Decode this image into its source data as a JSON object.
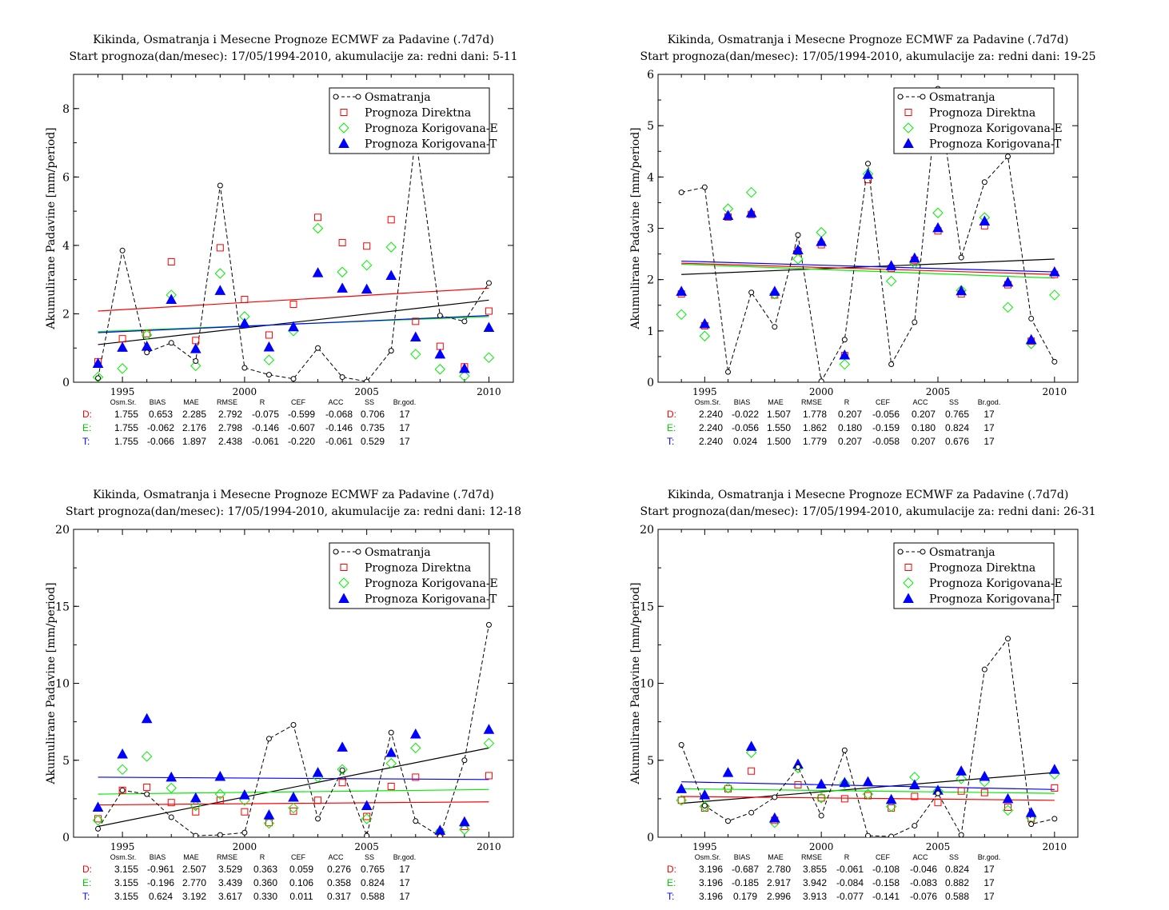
{
  "chart_data": [
    {
      "type": "scatter",
      "title": "Kikinda, Osmatranja i Mesecne Prognoze ECMWF za Padavine (.7d7d)",
      "subtitle": "Start prognoza(dan/mesec): 17/05/1994-2010, akumulacije za: redni dani: 5-11",
      "ylabel": "Akumulirane Padavine [mm/period]",
      "xlabel": "",
      "xlim": [
        1993,
        2011
      ],
      "ylim": [
        0,
        9
      ],
      "xticks": [
        1995,
        2000,
        2005,
        2010
      ],
      "yticks": [
        0,
        2,
        4,
        6,
        8
      ],
      "x": [
        1994,
        1995,
        1996,
        1997,
        1998,
        1999,
        2000,
        2001,
        2002,
        2003,
        2004,
        2005,
        2006,
        2007,
        2008,
        2009,
        2010
      ],
      "series": [
        {
          "name": "Osmatranja",
          "values": [
            0.12,
            3.85,
            0.87,
            1.15,
            0.62,
            5.75,
            0.42,
            0.22,
            0.1,
            1.0,
            0.15,
            0.02,
            0.92,
            7.2,
            1.95,
            1.78,
            2.9
          ]
        },
        {
          "name": "Prognoza Direktna",
          "values": [
            0.6,
            1.27,
            1.42,
            3.52,
            1.22,
            3.93,
            2.42,
            1.38,
            2.28,
            4.82,
            4.08,
            3.98,
            4.75,
            1.78,
            1.05,
            0.45,
            2.08
          ]
        },
        {
          "name": "Prognoza Korigovana-E",
          "values": [
            0.15,
            0.4,
            1.38,
            2.55,
            0.48,
            3.18,
            1.92,
            0.65,
            1.5,
            4.5,
            3.22,
            3.42,
            3.95,
            0.82,
            0.38,
            0.18,
            0.72
          ]
        },
        {
          "name": "Prognoza Korigovana-T",
          "values": [
            0.55,
            1.02,
            1.05,
            2.42,
            0.98,
            2.68,
            1.72,
            1.03,
            1.62,
            3.2,
            2.75,
            2.72,
            3.12,
            1.32,
            0.82,
            0.4,
            1.6
          ]
        }
      ],
      "trends": {
        "Osmatranja": [
          1.1,
          2.4
        ],
        "Prognoza Direktna": [
          2.08,
          2.75
        ],
        "Prognoza Korigovana-E": [
          1.48,
          1.92
        ],
        "Prognoza Korigovana-T": [
          1.45,
          1.95
        ]
      },
      "stats_header": [
        "Osm.Sr.",
        "BIAS",
        "MAE",
        "RMSE",
        "R",
        "CEF",
        "ACC",
        "SS",
        "Br.god."
      ],
      "stats_rows": [
        {
          "label": "D:",
          "values": [
            "1.755",
            "0.653",
            "2.285",
            "2.792",
            "-0.075",
            "-0.599",
            "-0.068",
            "0.706",
            "17"
          ]
        },
        {
          "label": "E:",
          "values": [
            "1.755",
            "-0.062",
            "2.176",
            "2.798",
            "-0.146",
            "-0.607",
            "-0.146",
            "0.735",
            "17"
          ]
        },
        {
          "label": "T:",
          "values": [
            "1.755",
            "-0.066",
            "1.897",
            "2.438",
            "-0.061",
            "-0.220",
            "-0.061",
            "0.529",
            "17"
          ]
        }
      ]
    },
    {
      "type": "scatter",
      "title": "Kikinda, Osmatranja i Mesecne Prognoze ECMWF za Padavine (.7d7d)",
      "subtitle": "Start prognoza(dan/mesec): 17/05/1994-2010, akumulacije za: redni dani: 19-25",
      "ylabel": "Akumulirane Padavine [mm/period]",
      "xlabel": "",
      "xlim": [
        1993,
        2011
      ],
      "ylim": [
        0,
        6
      ],
      "xticks": [
        1995,
        2000,
        2005,
        2010
      ],
      "yticks": [
        0,
        1,
        2,
        3,
        4,
        5,
        6
      ],
      "x": [
        1994,
        1995,
        1996,
        1997,
        1998,
        1999,
        2000,
        2001,
        2002,
        2003,
        2004,
        2005,
        2006,
        2007,
        2008,
        2009,
        2010
      ],
      "series": [
        {
          "name": "Osmatranja",
          "values": [
            3.7,
            3.8,
            0.2,
            1.75,
            1.08,
            2.87,
            0.02,
            0.83,
            4.26,
            0.35,
            1.17,
            5.72,
            2.43,
            3.9,
            4.4,
            1.24,
            0.4
          ]
        },
        {
          "name": "Prognoza Direktna",
          "values": [
            1.72,
            1.1,
            3.22,
            3.27,
            1.7,
            2.55,
            2.68,
            0.52,
            3.95,
            2.22,
            2.38,
            2.95,
            1.72,
            3.05,
            1.9,
            0.8,
            2.1
          ]
        },
        {
          "name": "Prognoza Korigovana-E",
          "values": [
            1.32,
            0.9,
            3.38,
            3.7,
            1.72,
            2.4,
            2.92,
            0.35,
            4.06,
            1.97,
            2.32,
            3.3,
            1.79,
            3.21,
            1.46,
            0.75,
            1.7
          ]
        },
        {
          "name": "Prognoza Korigovana-T",
          "values": [
            1.77,
            1.14,
            3.25,
            3.3,
            1.77,
            2.58,
            2.74,
            0.53,
            4.05,
            2.27,
            2.42,
            3.01,
            1.78,
            3.14,
            1.95,
            0.83,
            2.15
          ]
        }
      ],
      "trends": {
        "Osmatranja": [
          2.1,
          2.4
        ],
        "Prognoza Direktna": [
          2.32,
          2.1
        ],
        "Prognoza Korigovana-E": [
          2.3,
          2.03
        ],
        "Prognoza Korigovana-T": [
          2.36,
          2.15
        ]
      },
      "stats_header": [
        "Osm.Sr.",
        "BIAS",
        "MAE",
        "RMSE",
        "R",
        "CEF",
        "ACC",
        "SS",
        "Br.god."
      ],
      "stats_rows": [
        {
          "label": "D:",
          "values": [
            "2.240",
            "-0.022",
            "1.507",
            "1.778",
            "0.207",
            "-0.056",
            "0.207",
            "0.765",
            "17"
          ]
        },
        {
          "label": "E:",
          "values": [
            "2.240",
            "-0.056",
            "1.550",
            "1.862",
            "0.180",
            "-0.159",
            "0.180",
            "0.824",
            "17"
          ]
        },
        {
          "label": "T:",
          "values": [
            "2.240",
            "0.024",
            "1.500",
            "1.779",
            "0.207",
            "-0.058",
            "0.207",
            "0.676",
            "17"
          ]
        }
      ]
    },
    {
      "type": "scatter",
      "title": "Kikinda, Osmatranja i Mesecne Prognoze ECMWF za Padavine (.7d7d)",
      "subtitle": "Start prognoza(dan/mesec): 17/05/1994-2010, akumulacije za: redni dani: 12-18",
      "ylabel": "Akumulirane Padavine [mm/period]",
      "xlabel": "",
      "xlim": [
        1993,
        2011
      ],
      "ylim": [
        0,
        20
      ],
      "xticks": [
        1995,
        2000,
        2005,
        2010
      ],
      "yticks": [
        0,
        5,
        10,
        15,
        20
      ],
      "x": [
        1994,
        1995,
        1996,
        1997,
        1998,
        1999,
        2000,
        2001,
        2002,
        2003,
        2004,
        2005,
        2006,
        2007,
        2008,
        2009,
        2010
      ],
      "series": [
        {
          "name": "Osmatranja",
          "values": [
            0.55,
            3.05,
            2.8,
            1.3,
            0.1,
            0.15,
            0.3,
            6.4,
            7.3,
            1.2,
            4.35,
            0.1,
            6.8,
            1.05,
            0.05,
            5.0,
            13.8
          ]
        },
        {
          "name": "Prognoza Direktna",
          "values": [
            1.2,
            3.05,
            3.25,
            2.25,
            1.65,
            2.4,
            1.65,
            0.95,
            1.7,
            2.4,
            3.55,
            1.35,
            3.3,
            3.9,
            0.3,
            0.7,
            4.0
          ]
        },
        {
          "name": "Prognoza Korigovana-E",
          "values": [
            1.1,
            4.4,
            5.25,
            3.2,
            2.05,
            2.8,
            2.4,
            0.9,
            1.9,
            3.9,
            4.4,
            1.2,
            4.8,
            5.8,
            0.35,
            0.5,
            6.1
          ]
        },
        {
          "name": "Prognoza Korigovana-T",
          "values": [
            1.95,
            5.4,
            7.7,
            3.9,
            2.55,
            3.95,
            2.75,
            1.45,
            2.6,
            4.2,
            5.85,
            2.05,
            5.5,
            6.7,
            0.45,
            1.0,
            7.0
          ]
        }
      ],
      "trends": {
        "Osmatranja": [
          0.7,
          5.8
        ],
        "Prognoza Direktna": [
          2.1,
          2.3
        ],
        "Prognoza Korigovana-E": [
          2.8,
          3.1
        ],
        "Prognoza Korigovana-T": [
          3.9,
          3.75
        ]
      },
      "stats_header": [
        "Osm.Sr.",
        "BIAS",
        "MAE",
        "RMSE",
        "R",
        "CEF",
        "ACC",
        "SS",
        "Br.god."
      ],
      "stats_rows": [
        {
          "label": "D:",
          "values": [
            "3.155",
            "-0.961",
            "2.507",
            "3.529",
            "0.363",
            "0.059",
            "0.276",
            "0.765",
            "17"
          ]
        },
        {
          "label": "E:",
          "values": [
            "3.155",
            "-0.196",
            "2.770",
            "3.439",
            "0.360",
            "0.106",
            "0.358",
            "0.824",
            "17"
          ]
        },
        {
          "label": "T:",
          "values": [
            "3.155",
            "0.624",
            "3.192",
            "3.617",
            "0.330",
            "0.011",
            "0.317",
            "0.588",
            "17"
          ]
        }
      ]
    },
    {
      "type": "scatter",
      "title": "Kikinda, Osmatranja i Mesecne Prognoze ECMWF za Padavine (.7d7d)",
      "subtitle": "Start prognoza(dan/mesec): 17/05/1994-2010, akumulacije za: redni dani: 26-31",
      "ylabel": "Akumulirane Padavine [mm/period]",
      "xlabel": "",
      "xlim": [
        1993,
        2011
      ],
      "ylim": [
        0,
        20
      ],
      "xticks": [
        1995,
        2000,
        2005,
        2010
      ],
      "yticks": [
        0,
        5,
        10,
        15,
        20
      ],
      "x": [
        1994,
        1995,
        1996,
        1997,
        1998,
        1999,
        2000,
        2001,
        2002,
        2003,
        2004,
        2005,
        2006,
        2007,
        2008,
        2009,
        2010
      ],
      "series": [
        {
          "name": "Osmatranja",
          "values": [
            6.0,
            2.05,
            1.05,
            1.6,
            2.6,
            4.55,
            1.4,
            5.65,
            0.1,
            0.05,
            0.75,
            2.85,
            0.15,
            10.9,
            12.9,
            0.85,
            1.2
          ]
        },
        {
          "name": "Prognoza Direktna",
          "values": [
            2.4,
            1.9,
            3.15,
            4.3,
            1.1,
            3.4,
            2.55,
            2.5,
            2.7,
            1.9,
            2.65,
            2.25,
            3.0,
            2.9,
            1.95,
            1.2,
            3.2
          ]
        },
        {
          "name": "Prognoza Korigovana-E",
          "values": [
            2.4,
            2.0,
            3.2,
            5.5,
            0.95,
            4.5,
            2.55,
            3.5,
            2.8,
            2.0,
            3.9,
            3.0,
            3.8,
            3.6,
            1.75,
            1.25,
            4.1
          ]
        },
        {
          "name": "Prognoza Korigovana-T",
          "values": [
            3.15,
            2.75,
            4.2,
            5.9,
            1.25,
            4.75,
            3.45,
            3.55,
            3.6,
            2.45,
            3.4,
            3.05,
            4.3,
            3.95,
            2.5,
            1.6,
            4.4
          ]
        }
      ],
      "trends": {
        "Osmatranja": [
          2.2,
          4.2
        ],
        "Prognoza Direktna": [
          2.65,
          2.4
        ],
        "Prognoza Korigovana-E": [
          3.15,
          2.85
        ],
        "Prognoza Korigovana-T": [
          3.6,
          3.1
        ]
      },
      "stats_header": [
        "Osm.Sr.",
        "BIAS",
        "MAE",
        "RMSE",
        "R",
        "CEF",
        "ACC",
        "SS",
        "Br.god."
      ],
      "stats_rows": [
        {
          "label": "D:",
          "values": [
            "3.196",
            "-0.687",
            "2.780",
            "3.855",
            "-0.061",
            "-0.108",
            "-0.046",
            "0.824",
            "17"
          ]
        },
        {
          "label": "E:",
          "values": [
            "3.196",
            "-0.185",
            "2.917",
            "3.942",
            "-0.084",
            "-0.158",
            "-0.083",
            "0.882",
            "17"
          ]
        },
        {
          "label": "T:",
          "values": [
            "3.196",
            "0.179",
            "2.996",
            "3.913",
            "-0.077",
            "-0.141",
            "-0.076",
            "0.588",
            "17"
          ]
        }
      ]
    }
  ],
  "colors": {
    "Osmatranja": "#000000",
    "Prognoza Direktna": "#ff0000",
    "Prognoza Korigovana-E": "#00ee00",
    "Prognoza Korigovana-T": "#0000ff",
    "row_D": "#ff0000",
    "row_E": "#00cc00",
    "row_T": "#0000ff"
  },
  "legend_placement": "top-right"
}
